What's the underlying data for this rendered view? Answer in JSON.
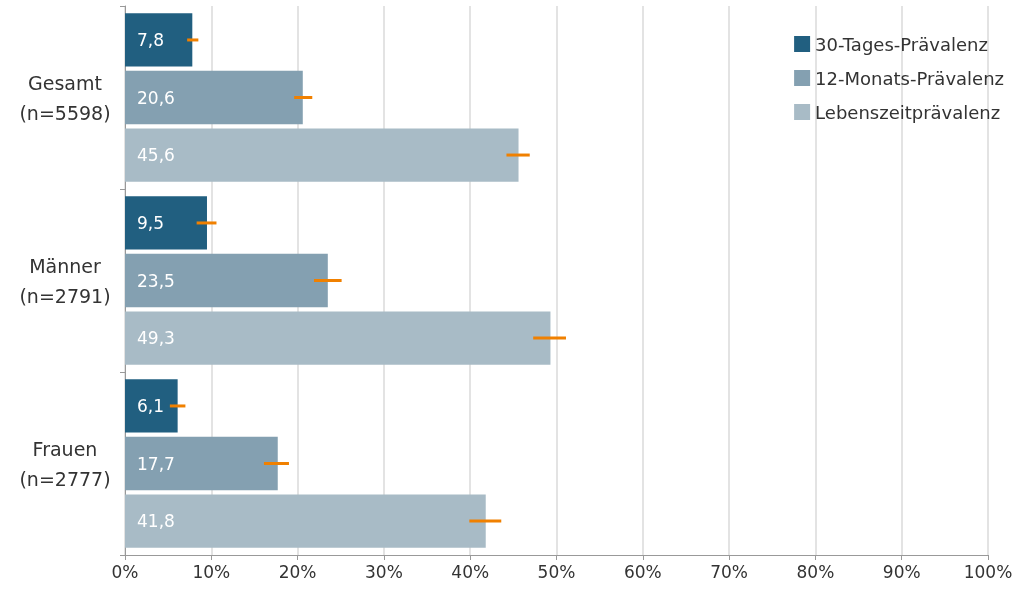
{
  "chart_data": {
    "type": "bar",
    "orientation": "horizontal",
    "categories": [
      "Gesamt\n(n=5598)",
      "Männer\n(n=2791)",
      "Frauen\n(n=2777)"
    ],
    "series": [
      {
        "name": "30-Tages-Prävalenz",
        "color": "#215f80",
        "values": [
          7.8,
          9.5,
          6.1
        ],
        "value_labels": [
          "7,8",
          "9,5",
          "6,1"
        ],
        "errors": [
          [
            7.2,
            8.5
          ],
          [
            8.3,
            10.6
          ],
          [
            5.2,
            7.0
          ]
        ]
      },
      {
        "name": "12-Monats-Prävalenz",
        "color": "#84a0b1",
        "values": [
          20.6,
          23.5,
          17.7
        ],
        "value_labels": [
          "20,6",
          "23,5",
          "17,7"
        ],
        "errors": [
          [
            19.6,
            21.7
          ],
          [
            21.9,
            25.1
          ],
          [
            16.1,
            19.0
          ]
        ]
      },
      {
        "name": "Lebenszeitprävalenz",
        "color": "#a8bbc6",
        "values": [
          45.6,
          49.3,
          41.8
        ],
        "value_labels": [
          "45,6",
          "49,3",
          "41,8"
        ],
        "errors": [
          [
            44.2,
            46.9
          ],
          [
            47.3,
            51.1
          ],
          [
            39.9,
            43.6
          ]
        ]
      }
    ],
    "xlim": [
      0,
      100
    ],
    "xticks": [
      {
        "value": 0,
        "label": "0%"
      },
      {
        "value": 10,
        "label": "10%"
      },
      {
        "value": 20,
        "label": "20%"
      },
      {
        "value": 30,
        "label": "30%"
      },
      {
        "value": 40,
        "label": "40%"
      },
      {
        "value": 50,
        "label": "50%"
      },
      {
        "value": 60,
        "label": "60%"
      },
      {
        "value": 70,
        "label": "70%"
      },
      {
        "value": 80,
        "label": "80%"
      },
      {
        "value": 90,
        "label": "90%"
      },
      {
        "value": 100,
        "label": "100%"
      }
    ],
    "grid": "x",
    "legend": "top right"
  }
}
